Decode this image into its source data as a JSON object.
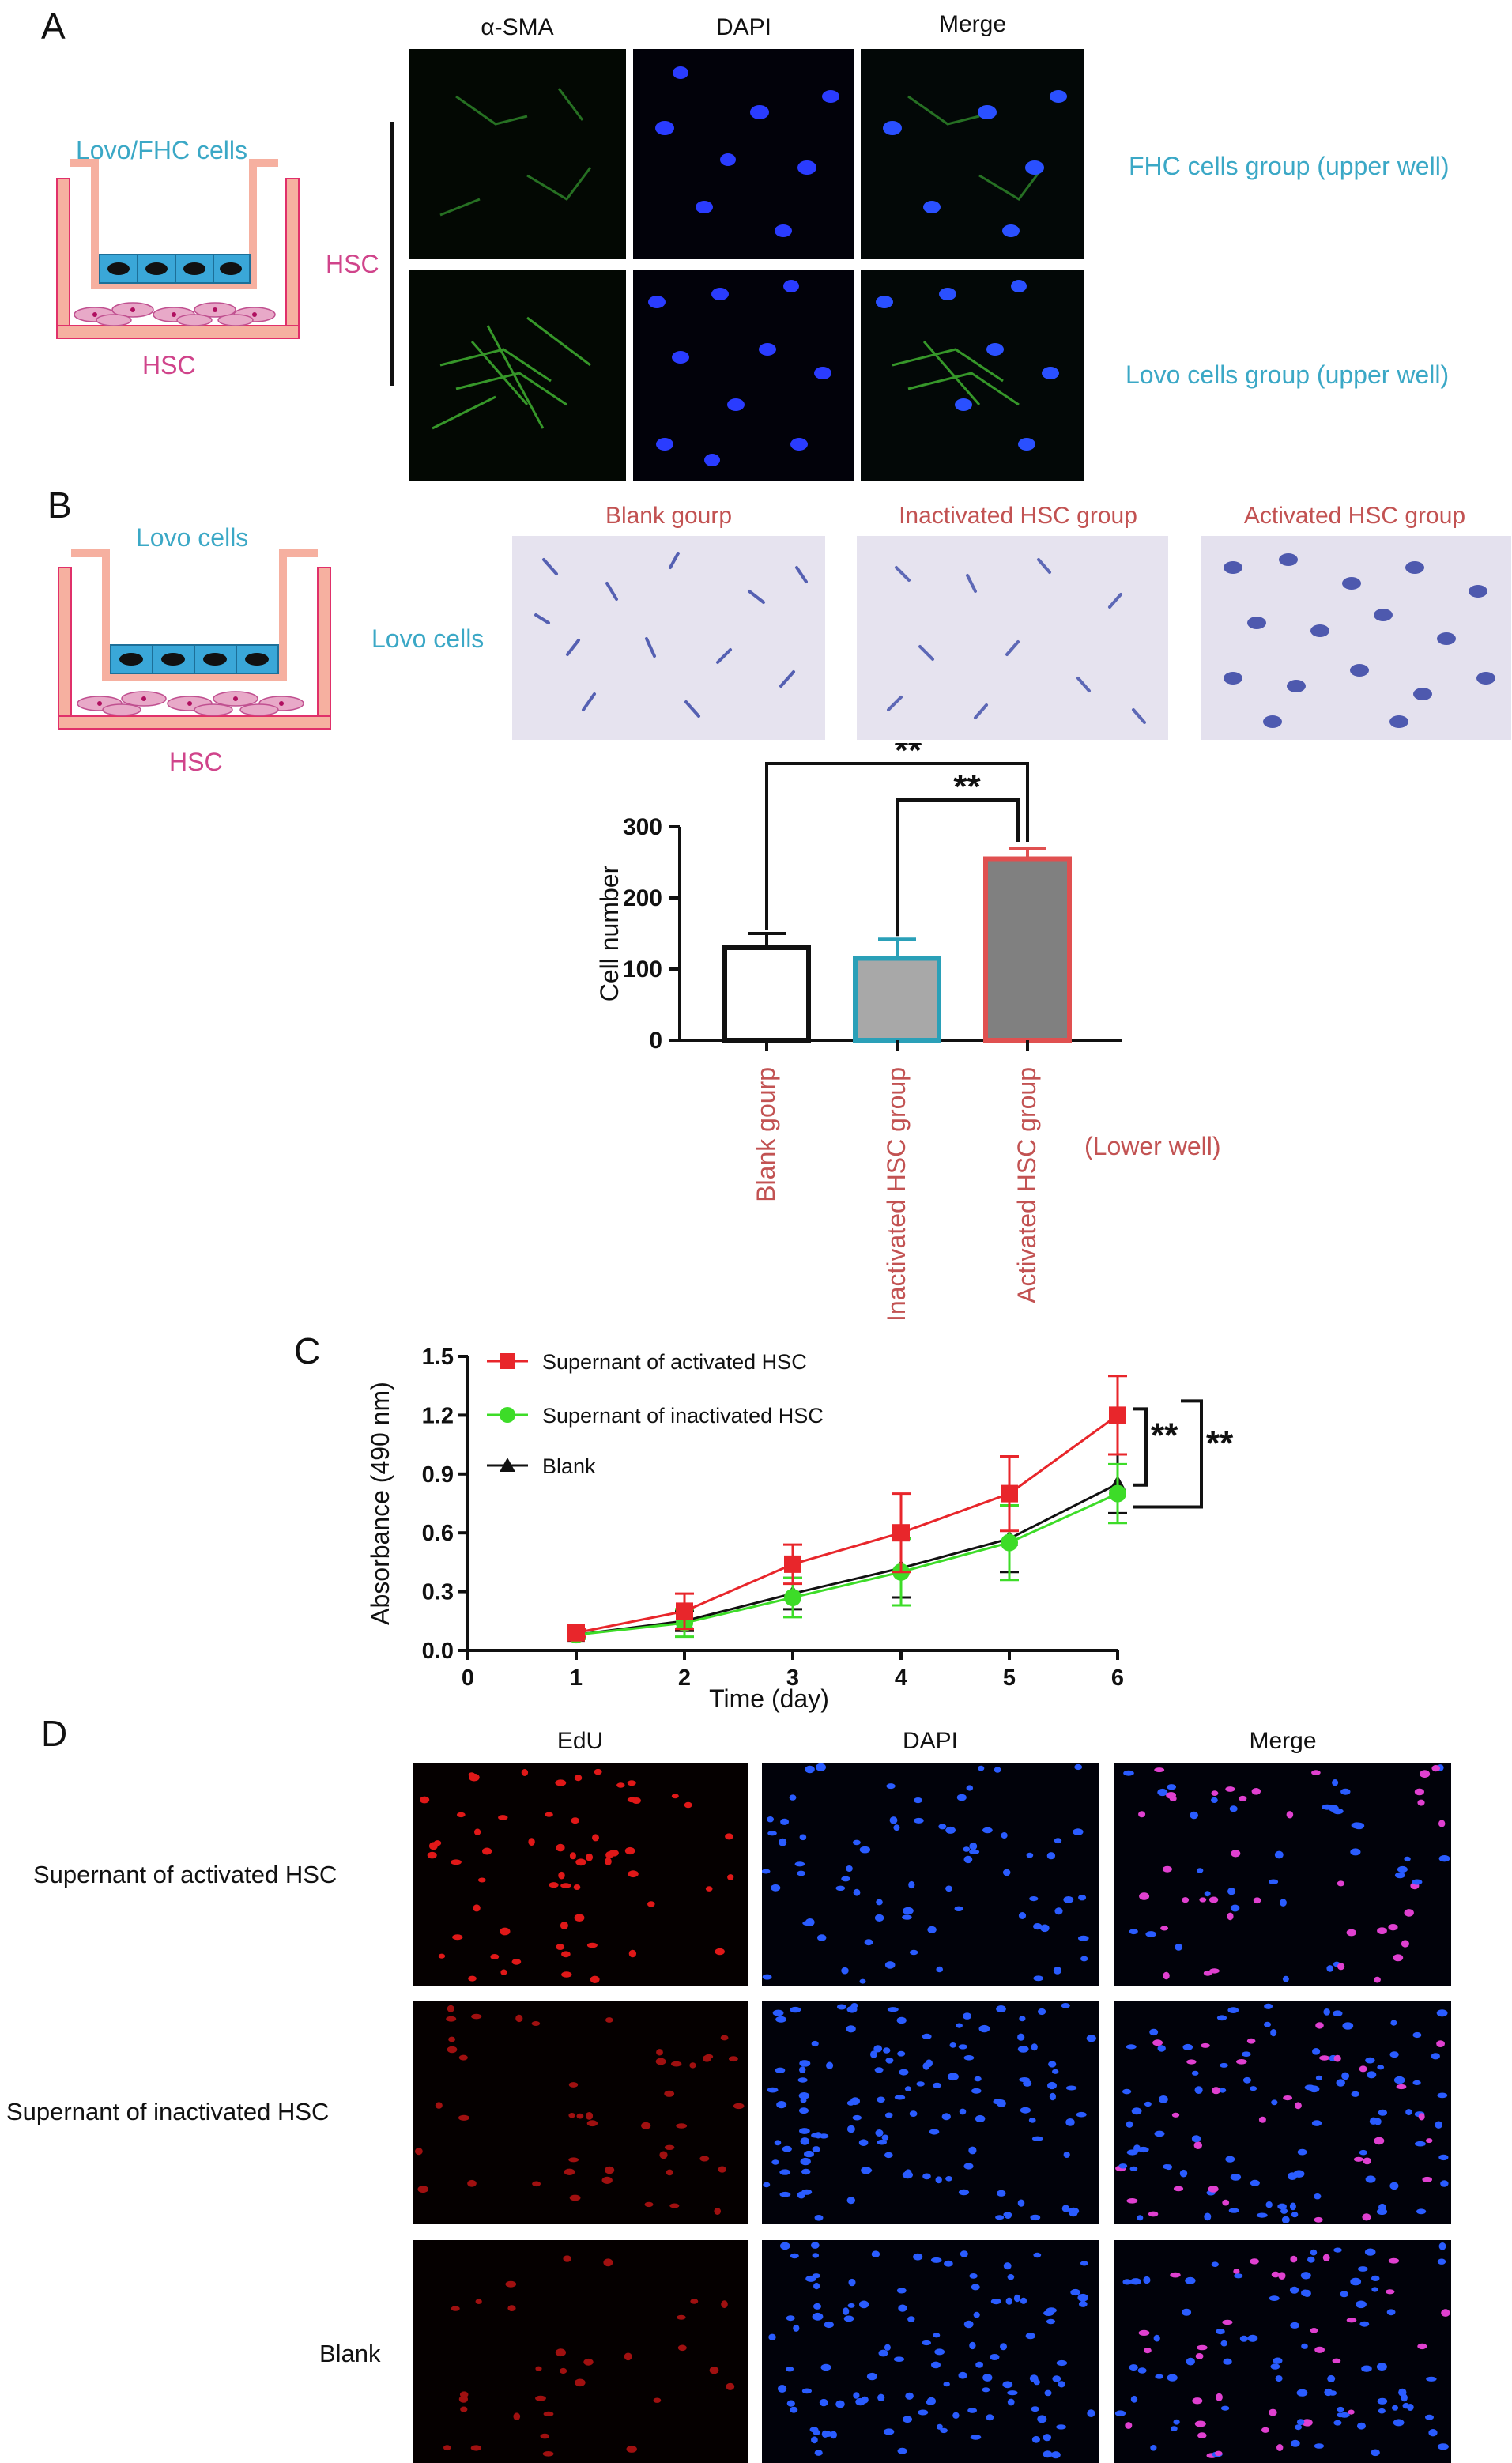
{
  "panels": {
    "a": "A",
    "b": "B",
    "c": "C",
    "d": "D"
  },
  "panel_a": {
    "col_titles": [
      "α-SMA",
      "DAPI",
      "Merge"
    ],
    "schematic": {
      "top_label": "Lovo/FHC cells",
      "bottom_label": "HSC"
    },
    "row_side_label": "HSC",
    "row_labels": [
      "FHC cells group (upper well)",
      "Lovo cells group (upper well)"
    ]
  },
  "panel_b": {
    "schematic": {
      "top_label": "Lovo cells",
      "bottom_label": "HSC"
    },
    "row_label": "Lovo cells",
    "col_titles": [
      "Blank gourp",
      "Inactivated HSC group",
      "Activated HSC group"
    ],
    "lower_well_label": "(Lower well)"
  },
  "panel_d": {
    "col_titles": [
      "EdU",
      "DAPI",
      "Merge"
    ],
    "row_labels": [
      "Supernant of activated HSC",
      "Supernant of inactivated HSC",
      "Blank"
    ]
  },
  "chart_data": [
    {
      "type": "bar",
      "ylabel": "Cell number",
      "categories": [
        "Blank gourp",
        "Inactivated HSC group",
        "Activated HSC group"
      ],
      "values": [
        130,
        115,
        255
      ],
      "errors": [
        20,
        27,
        15
      ],
      "ylim": [
        0,
        300
      ],
      "yticks": [
        "0",
        "100",
        "200",
        "300"
      ],
      "edge_colors": [
        "#111111",
        "#2aa0b8",
        "#e05050"
      ],
      "fill_colors": [
        "#ffffff",
        "#a8a8a8",
        "#808080"
      ],
      "significance": [
        {
          "between": [
            0,
            2
          ],
          "label": "**"
        },
        {
          "between": [
            1,
            2
          ],
          "label": "**"
        }
      ]
    },
    {
      "type": "line",
      "xlabel": "Time (day)",
      "ylabel": "Absorbance (490 nm)",
      "xlim": [
        0,
        6
      ],
      "ylim": [
        0,
        1.5
      ],
      "xticks": [
        "0",
        "1",
        "2",
        "3",
        "4",
        "5",
        "6"
      ],
      "yticks": [
        "0.0",
        "0.3",
        "0.6",
        "0.9",
        "1.2",
        "1.5"
      ],
      "x": [
        1,
        2,
        3,
        4,
        5,
        6
      ],
      "legend_position": "top-left",
      "series": [
        {
          "name": "Supernant of activated HSC",
          "color": "#e8262b",
          "marker": "square",
          "values": [
            0.09,
            0.2,
            0.44,
            0.6,
            0.8,
            1.2
          ],
          "errors": [
            0.02,
            0.09,
            0.1,
            0.2,
            0.19,
            0.2
          ]
        },
        {
          "name": "Supernant of inactivated HSC",
          "color": "#3ddc28",
          "marker": "circle",
          "values": [
            0.08,
            0.14,
            0.27,
            0.4,
            0.55,
            0.8
          ],
          "errors": [
            0.02,
            0.07,
            0.1,
            0.17,
            0.19,
            0.15
          ]
        },
        {
          "name": "Blank",
          "color": "#111111",
          "marker": "triangle",
          "values": [
            0.08,
            0.15,
            0.29,
            0.42,
            0.57,
            0.85
          ],
          "errors": [
            0.02,
            0.05,
            0.08,
            0.15,
            0.17,
            0.15
          ]
        }
      ],
      "significance": [
        "**",
        "**"
      ]
    }
  ]
}
